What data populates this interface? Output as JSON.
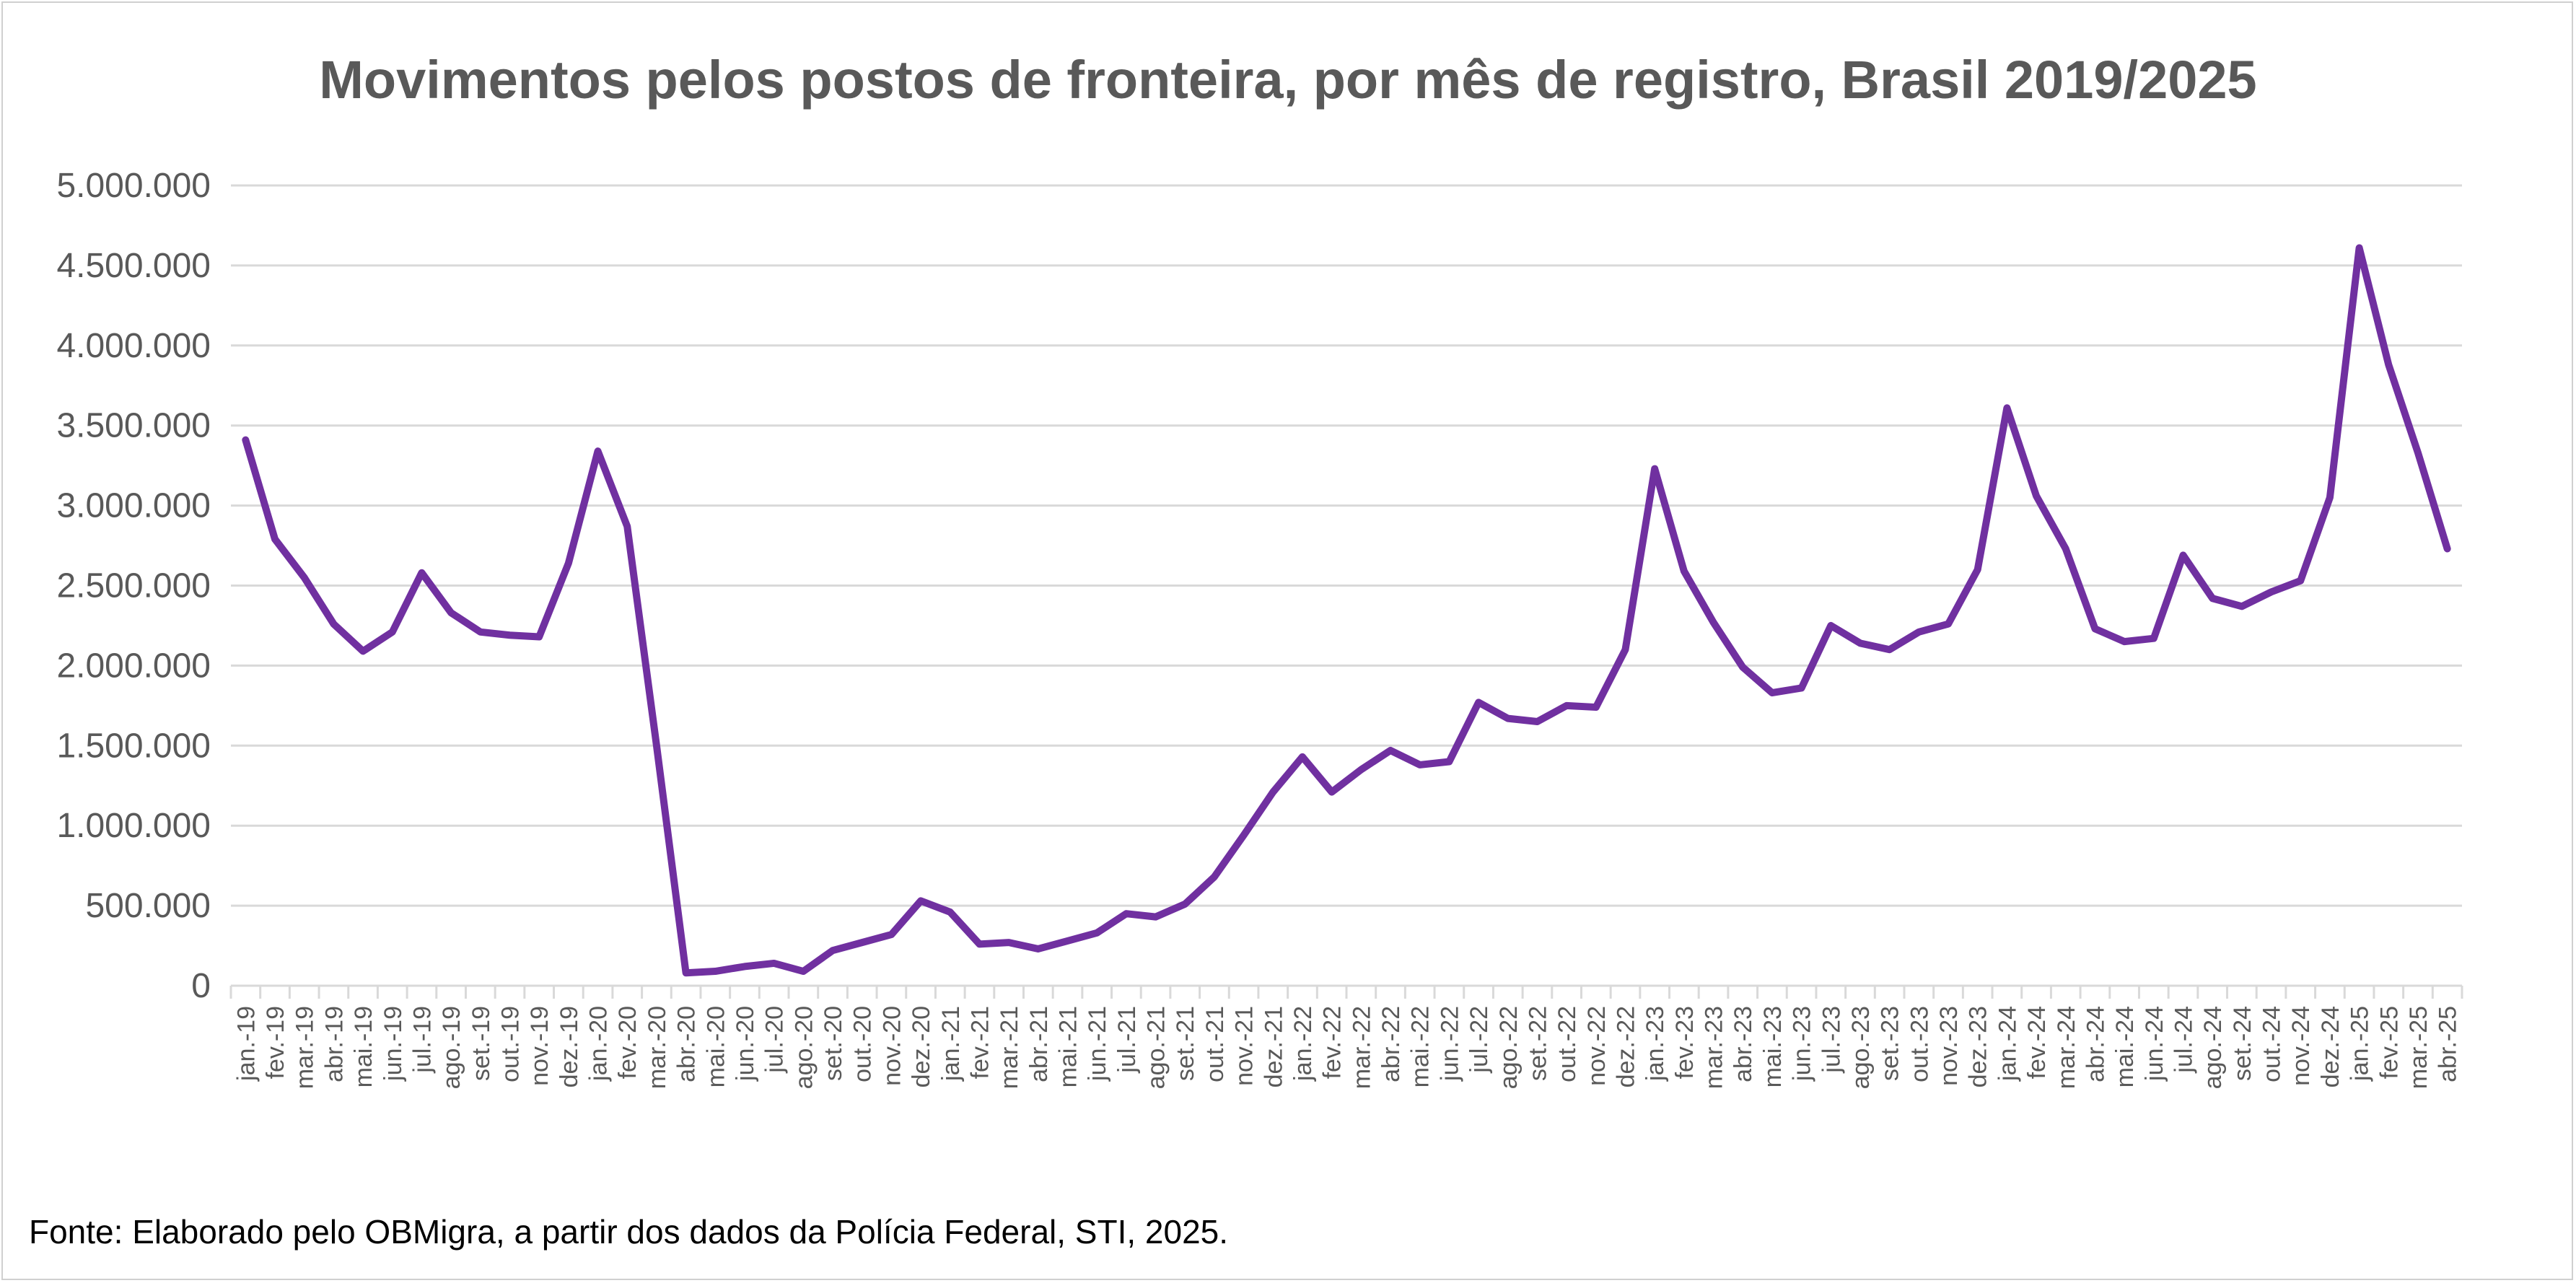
{
  "chart_data": {
    "type": "line",
    "title": "Movimentos pelos postos de fronteira, por mês de registro, Brasil 2019/2025",
    "xlabel": "",
    "ylabel": "",
    "ylim": [
      0,
      5000000
    ],
    "yticks": [
      "0",
      "500.000",
      "1.000.000",
      "1.500.000",
      "2.000.000",
      "2.500.000",
      "3.000.000",
      "3.500.000",
      "4.000.000",
      "4.500.000",
      "5.000.000"
    ],
    "grid": true,
    "legend": "none",
    "line_color": "#7030A0",
    "categories": [
      "jan.-19",
      "fev.-19",
      "mar.-19",
      "abr.-19",
      "mai.-19",
      "jun.-19",
      "jul.-19",
      "ago.-19",
      "set.-19",
      "out.-19",
      "nov.-19",
      "dez.-19",
      "jan.-20",
      "fev.-20",
      "mar.-20",
      "abr.-20",
      "mai.-20",
      "jun.-20",
      "jul.-20",
      "ago.-20",
      "set.-20",
      "out.-20",
      "nov.-20",
      "dez.-20",
      "jan.-21",
      "fev.-21",
      "mar.-21",
      "abr.-21",
      "mai.-21",
      "jun.-21",
      "jul.-21",
      "ago.-21",
      "set.-21",
      "out.-21",
      "nov.-21",
      "dez.-21",
      "jan.-22",
      "fev.-22",
      "mar.-22",
      "abr.-22",
      "mai.-22",
      "jun.-22",
      "jul.-22",
      "ago.-22",
      "set.-22",
      "out.-22",
      "nov.-22",
      "dez.-22",
      "jan.-23",
      "fev.-23",
      "mar.-23",
      "abr.-23",
      "mai.-23",
      "jun.-23",
      "jul.-23",
      "ago.-23",
      "set.-23",
      "out.-23",
      "nov.-23",
      "dez.-23",
      "jan.-24",
      "fev.-24",
      "mar.-24",
      "abr.-24",
      "mai.-24",
      "jun.-24",
      "jul.-24",
      "ago.-24",
      "set.-24",
      "out.-24",
      "nov.-24",
      "dez.-24",
      "jan.-25",
      "fev.-25",
      "mar.-25",
      "abr.-25"
    ],
    "series": [
      {
        "values": [
          3410000,
          2790000,
          2550000,
          2260000,
          2090000,
          2210000,
          2580000,
          2330000,
          2210000,
          2190000,
          2180000,
          2640000,
          3340000,
          2870000,
          1500000,
          80000,
          90000,
          120000,
          140000,
          90000,
          220000,
          270000,
          320000,
          530000,
          460000,
          260000,
          270000,
          230000,
          280000,
          330000,
          450000,
          430000,
          510000,
          680000,
          940000,
          1210000,
          1430000,
          1210000,
          1350000,
          1470000,
          1380000,
          1400000,
          1770000,
          1670000,
          1650000,
          1750000,
          1740000,
          2100000,
          3230000,
          2590000,
          2270000,
          1990000,
          1830000,
          1860000,
          2250000,
          2140000,
          2100000,
          2210000,
          2260000,
          2600000,
          3610000,
          3060000,
          2730000,
          2230000,
          2150000,
          2170000,
          2690000,
          2420000,
          2370000,
          2460000,
          2530000,
          3050000,
          4610000,
          3880000,
          3330000,
          2730000
        ]
      }
    ]
  },
  "source": "Fonte: Elaborado pelo OBMigra, a partir dos dados da Polícia Federal, STI, 2025."
}
